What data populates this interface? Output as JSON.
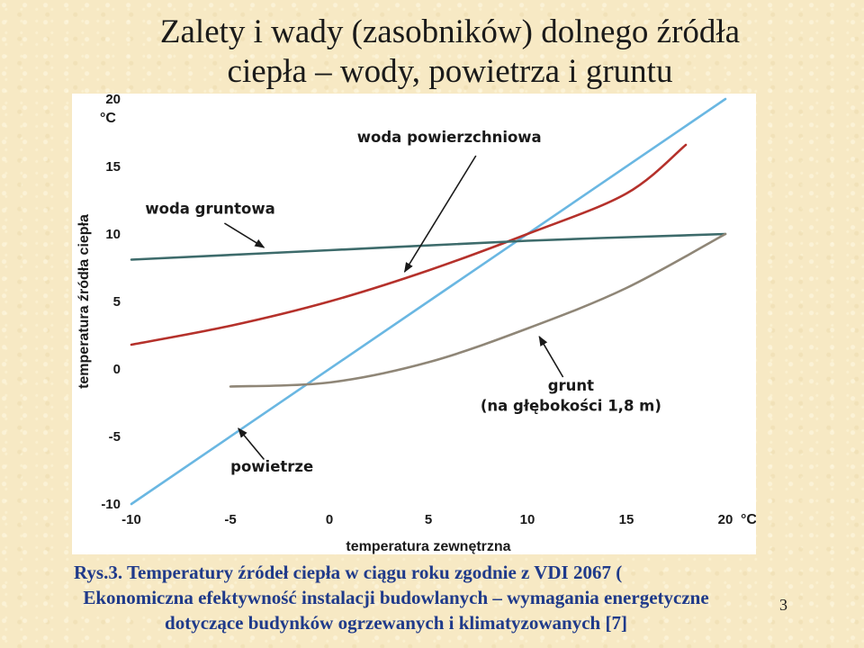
{
  "slide": {
    "title_line1": "Zalety i wady (zasobników) dolnego źródła",
    "title_line2": "ciepła – wody, powietrza i gruntu",
    "caption_line1": "Rys.3. Temperatury źródeł ciepła w ciągu roku zgodnie z VDI 2067 (",
    "caption_line2": "Ekonomiczna efektywność instalacji budowlanych – wymagania energetyczne",
    "caption_line3": "dotyczące budynków ogrzewanych i klimatyzowanych [7]",
    "page_number": "3"
  },
  "chart_data": {
    "type": "line",
    "title": "",
    "xlabel": "temperatura zewnętrzna",
    "ylabel": "temperatura źródła ciepła",
    "x_unit": "°C",
    "y_unit": "°C",
    "xlim": [
      -10,
      20
    ],
    "ylim": [
      -10,
      20
    ],
    "x_ticks": [
      "-10",
      "-5",
      "0",
      "5",
      "10",
      "15",
      "20"
    ],
    "y_ticks": [
      "-10",
      "-5",
      "0",
      "5",
      "10",
      "15",
      "20"
    ],
    "grid": false,
    "series": [
      {
        "name": "powietrze",
        "color": "#6ab7e2",
        "x": [
          -10,
          20
        ],
        "y": [
          -10,
          20
        ]
      },
      {
        "name": "woda powierzchniowa",
        "color": "#b5312b",
        "x": [
          -10,
          -5,
          0,
          5,
          10,
          15,
          18
        ],
        "y": [
          1.8,
          3.2,
          5.0,
          7.3,
          10.0,
          13.0,
          16.6
        ]
      },
      {
        "name": "woda gruntowa",
        "color": "#3d6b6b",
        "x": [
          -10,
          0,
          10,
          20
        ],
        "y": [
          8.1,
          8.8,
          9.5,
          10.0
        ]
      },
      {
        "name": "grunt (na głębokości 1,8 m)",
        "color": "#8f8677",
        "x": [
          -5,
          0,
          5,
          10,
          15,
          20
        ],
        "y": [
          -1.3,
          -1.0,
          0.5,
          3.0,
          6.0,
          10.0
        ]
      }
    ],
    "annotations": [
      {
        "text": "woda powierzchniowa",
        "target_series": "woda powierzchniowa"
      },
      {
        "text": "woda gruntowa",
        "target_series": "woda gruntowa"
      },
      {
        "text": "grunt",
        "target_series": "grunt (na głębokości 1,8 m)"
      },
      {
        "text": "(na głębokości 1,8 m)",
        "target_series": "grunt (na głębokości 1,8 m)"
      },
      {
        "text": "powietrze",
        "target_series": "powietrze"
      }
    ]
  }
}
